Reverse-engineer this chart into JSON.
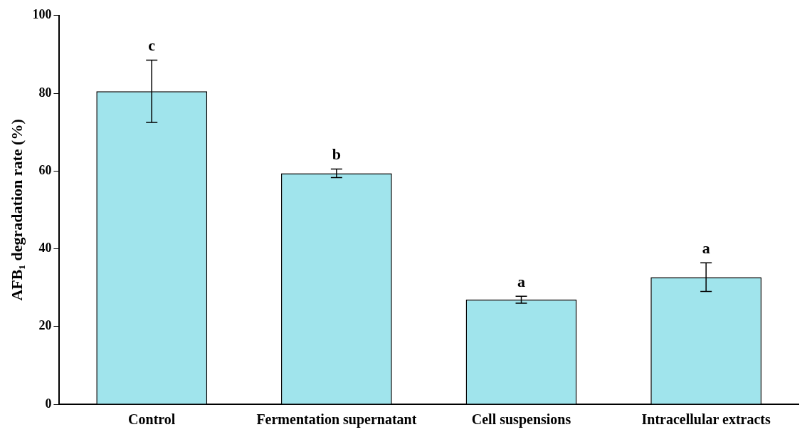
{
  "chart_data": {
    "type": "bar",
    "ylabel": "AFB₁ degradation rate (%)",
    "categories": [
      "Control",
      "Fermentation supernatant",
      "Cell suspensions",
      "Intracellular extracts"
    ],
    "values": [
      80.5,
      59.4,
      26.9,
      32.7
    ],
    "errors": [
      8,
      1.1,
      0.9,
      3.7
    ],
    "color": "#a0e4ec",
    "ylim": [
      0,
      100
    ],
    "yticks": [
      0,
      20,
      40,
      60,
      80,
      100
    ],
    "grid": false,
    "legend": false,
    "annotations": [
      {
        "text": "c",
        "x": "Control",
        "y": 88.5
      },
      {
        "text": "b",
        "x": "Fermentation supernatant",
        "y": 60.5
      },
      {
        "text": "a",
        "x": "Cell suspensions",
        "y": 27.8
      },
      {
        "text": "a",
        "x": "Intracellular extracts",
        "y": 36.4
      }
    ]
  }
}
